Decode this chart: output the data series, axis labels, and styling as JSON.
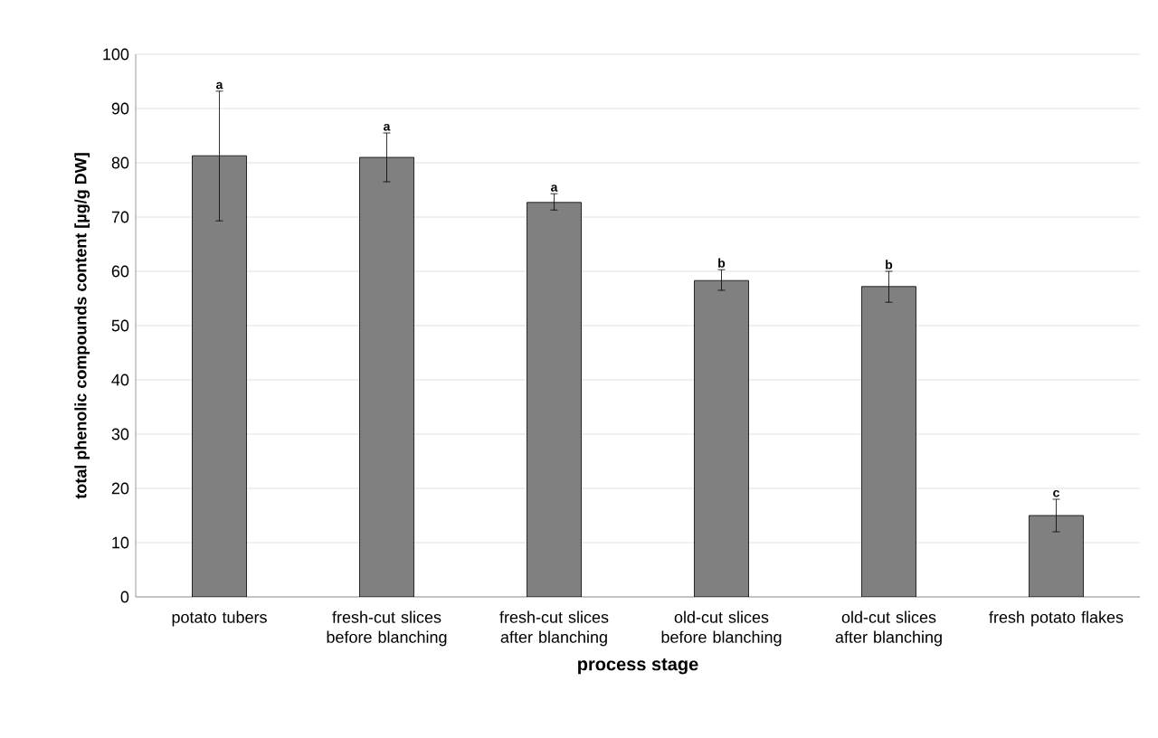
{
  "chart_data": {
    "type": "bar",
    "xlabel": "process stage",
    "ylabel": "total phenolic compounds content [µg/g DW]",
    "categories": [
      "potato tubers",
      "fresh-cut slices before blanching",
      "fresh-cut slices after blanching",
      "old-cut slices before blanching",
      "old-cut slices after blanching",
      "fresh potato flakes"
    ],
    "values": [
      81.3,
      81,
      72.7,
      58.3,
      57.2,
      15
    ],
    "errors": [
      [
        69.3,
        93.2
      ],
      [
        76.5,
        85.5
      ],
      [
        71.3,
        74.3
      ],
      [
        56.5,
        60.3
      ],
      [
        54.3,
        60
      ],
      [
        12,
        18
      ]
    ],
    "color": "#808080",
    "ylim": [
      0,
      100
    ],
    "yticks": [
      0,
      10,
      20,
      30,
      40,
      50,
      60,
      70,
      80,
      90,
      100
    ],
    "grid": "y",
    "annotations": [
      {
        "text": "a",
        "x": "potato tubers",
        "y": 93.2
      },
      {
        "text": "a",
        "x": "fresh-cut slices before blanching",
        "y": 85.5
      },
      {
        "text": "a",
        "x": "fresh-cut slices after blanching",
        "y": 74.3
      },
      {
        "text": "b",
        "x": "old-cut slices before blanching",
        "y": 60.3
      },
      {
        "text": "b",
        "x": "old-cut slices after blanching",
        "y": 60
      },
      {
        "text": "c",
        "x": "fresh potato flakes",
        "y": 18
      }
    ]
  }
}
